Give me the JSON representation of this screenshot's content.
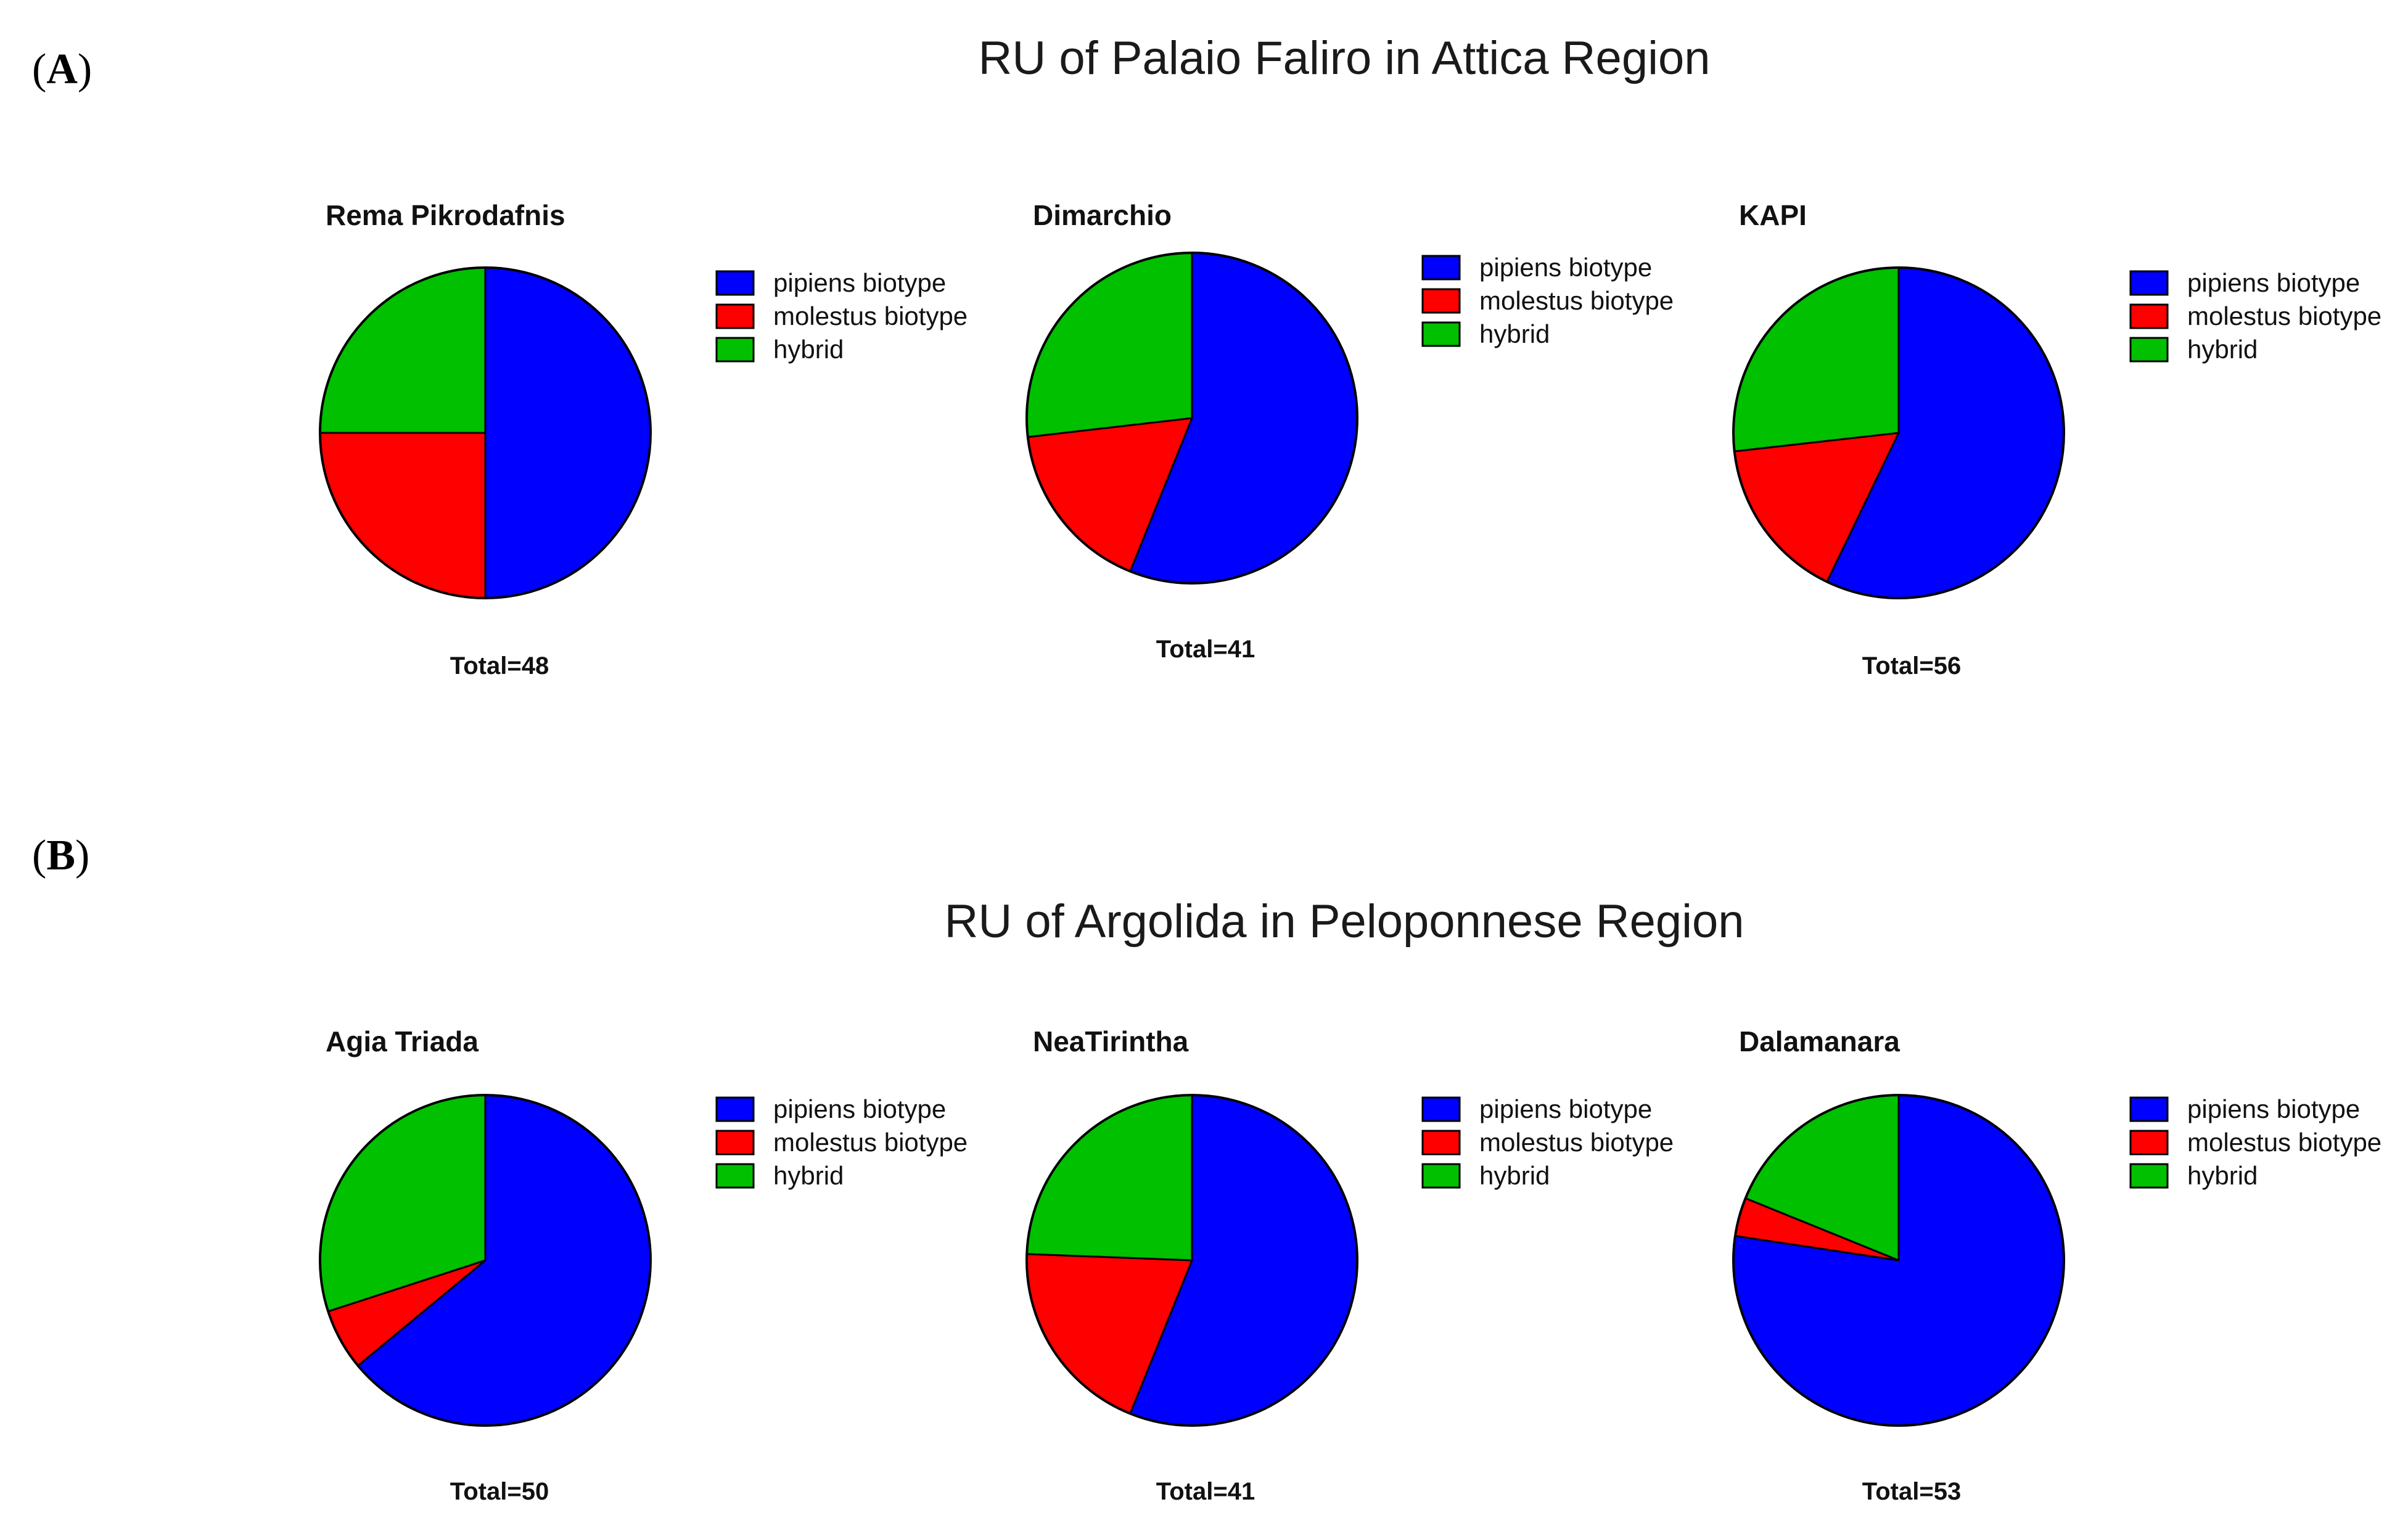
{
  "colors": {
    "pipiens": "#0000ff",
    "molestus": "#ff0000",
    "hybrid": "#00c000",
    "outline": "#000000"
  },
  "panels": [
    {
      "label_letter": "A",
      "title": "RU of Palaio Faliro in Attica Region"
    },
    {
      "label_letter": "B",
      "title": "RU of Argolida in Peloponnese Region"
    }
  ],
  "chart_data": [
    {
      "type": "pie",
      "title": "Rema Pikrodafnis",
      "total_label": "Total=48",
      "categories": [
        "pipiens biotype",
        "molestus biotype",
        "hybrid"
      ],
      "values": [
        24,
        12,
        12
      ]
    },
    {
      "type": "pie",
      "title": "Dimarchio",
      "total_label": "Total=41",
      "categories": [
        "pipiens biotype",
        "molestus biotype",
        "hybrid"
      ],
      "values": [
        23,
        7,
        11
      ]
    },
    {
      "type": "pie",
      "title": "KAPI",
      "total_label": "Total=56",
      "categories": [
        "pipiens biotype",
        "molestus biotype",
        "hybrid"
      ],
      "values": [
        32,
        9,
        15
      ]
    },
    {
      "type": "pie",
      "title": "Agia Triada",
      "total_label": "Total=50",
      "categories": [
        "pipiens biotype",
        "molestus biotype",
        "hybrid"
      ],
      "values": [
        32,
        3,
        15
      ]
    },
    {
      "type": "pie",
      "title": "NeaTirintha",
      "total_label": "Total=41",
      "categories": [
        "pipiens biotype",
        "molestus biotype",
        "hybrid"
      ],
      "values": [
        23,
        8,
        10
      ]
    },
    {
      "type": "pie",
      "title": "Dalamanara",
      "total_label": "Total=53",
      "categories": [
        "pipiens biotype",
        "molestus biotype",
        "hybrid"
      ],
      "values": [
        41,
        2,
        10
      ]
    }
  ]
}
